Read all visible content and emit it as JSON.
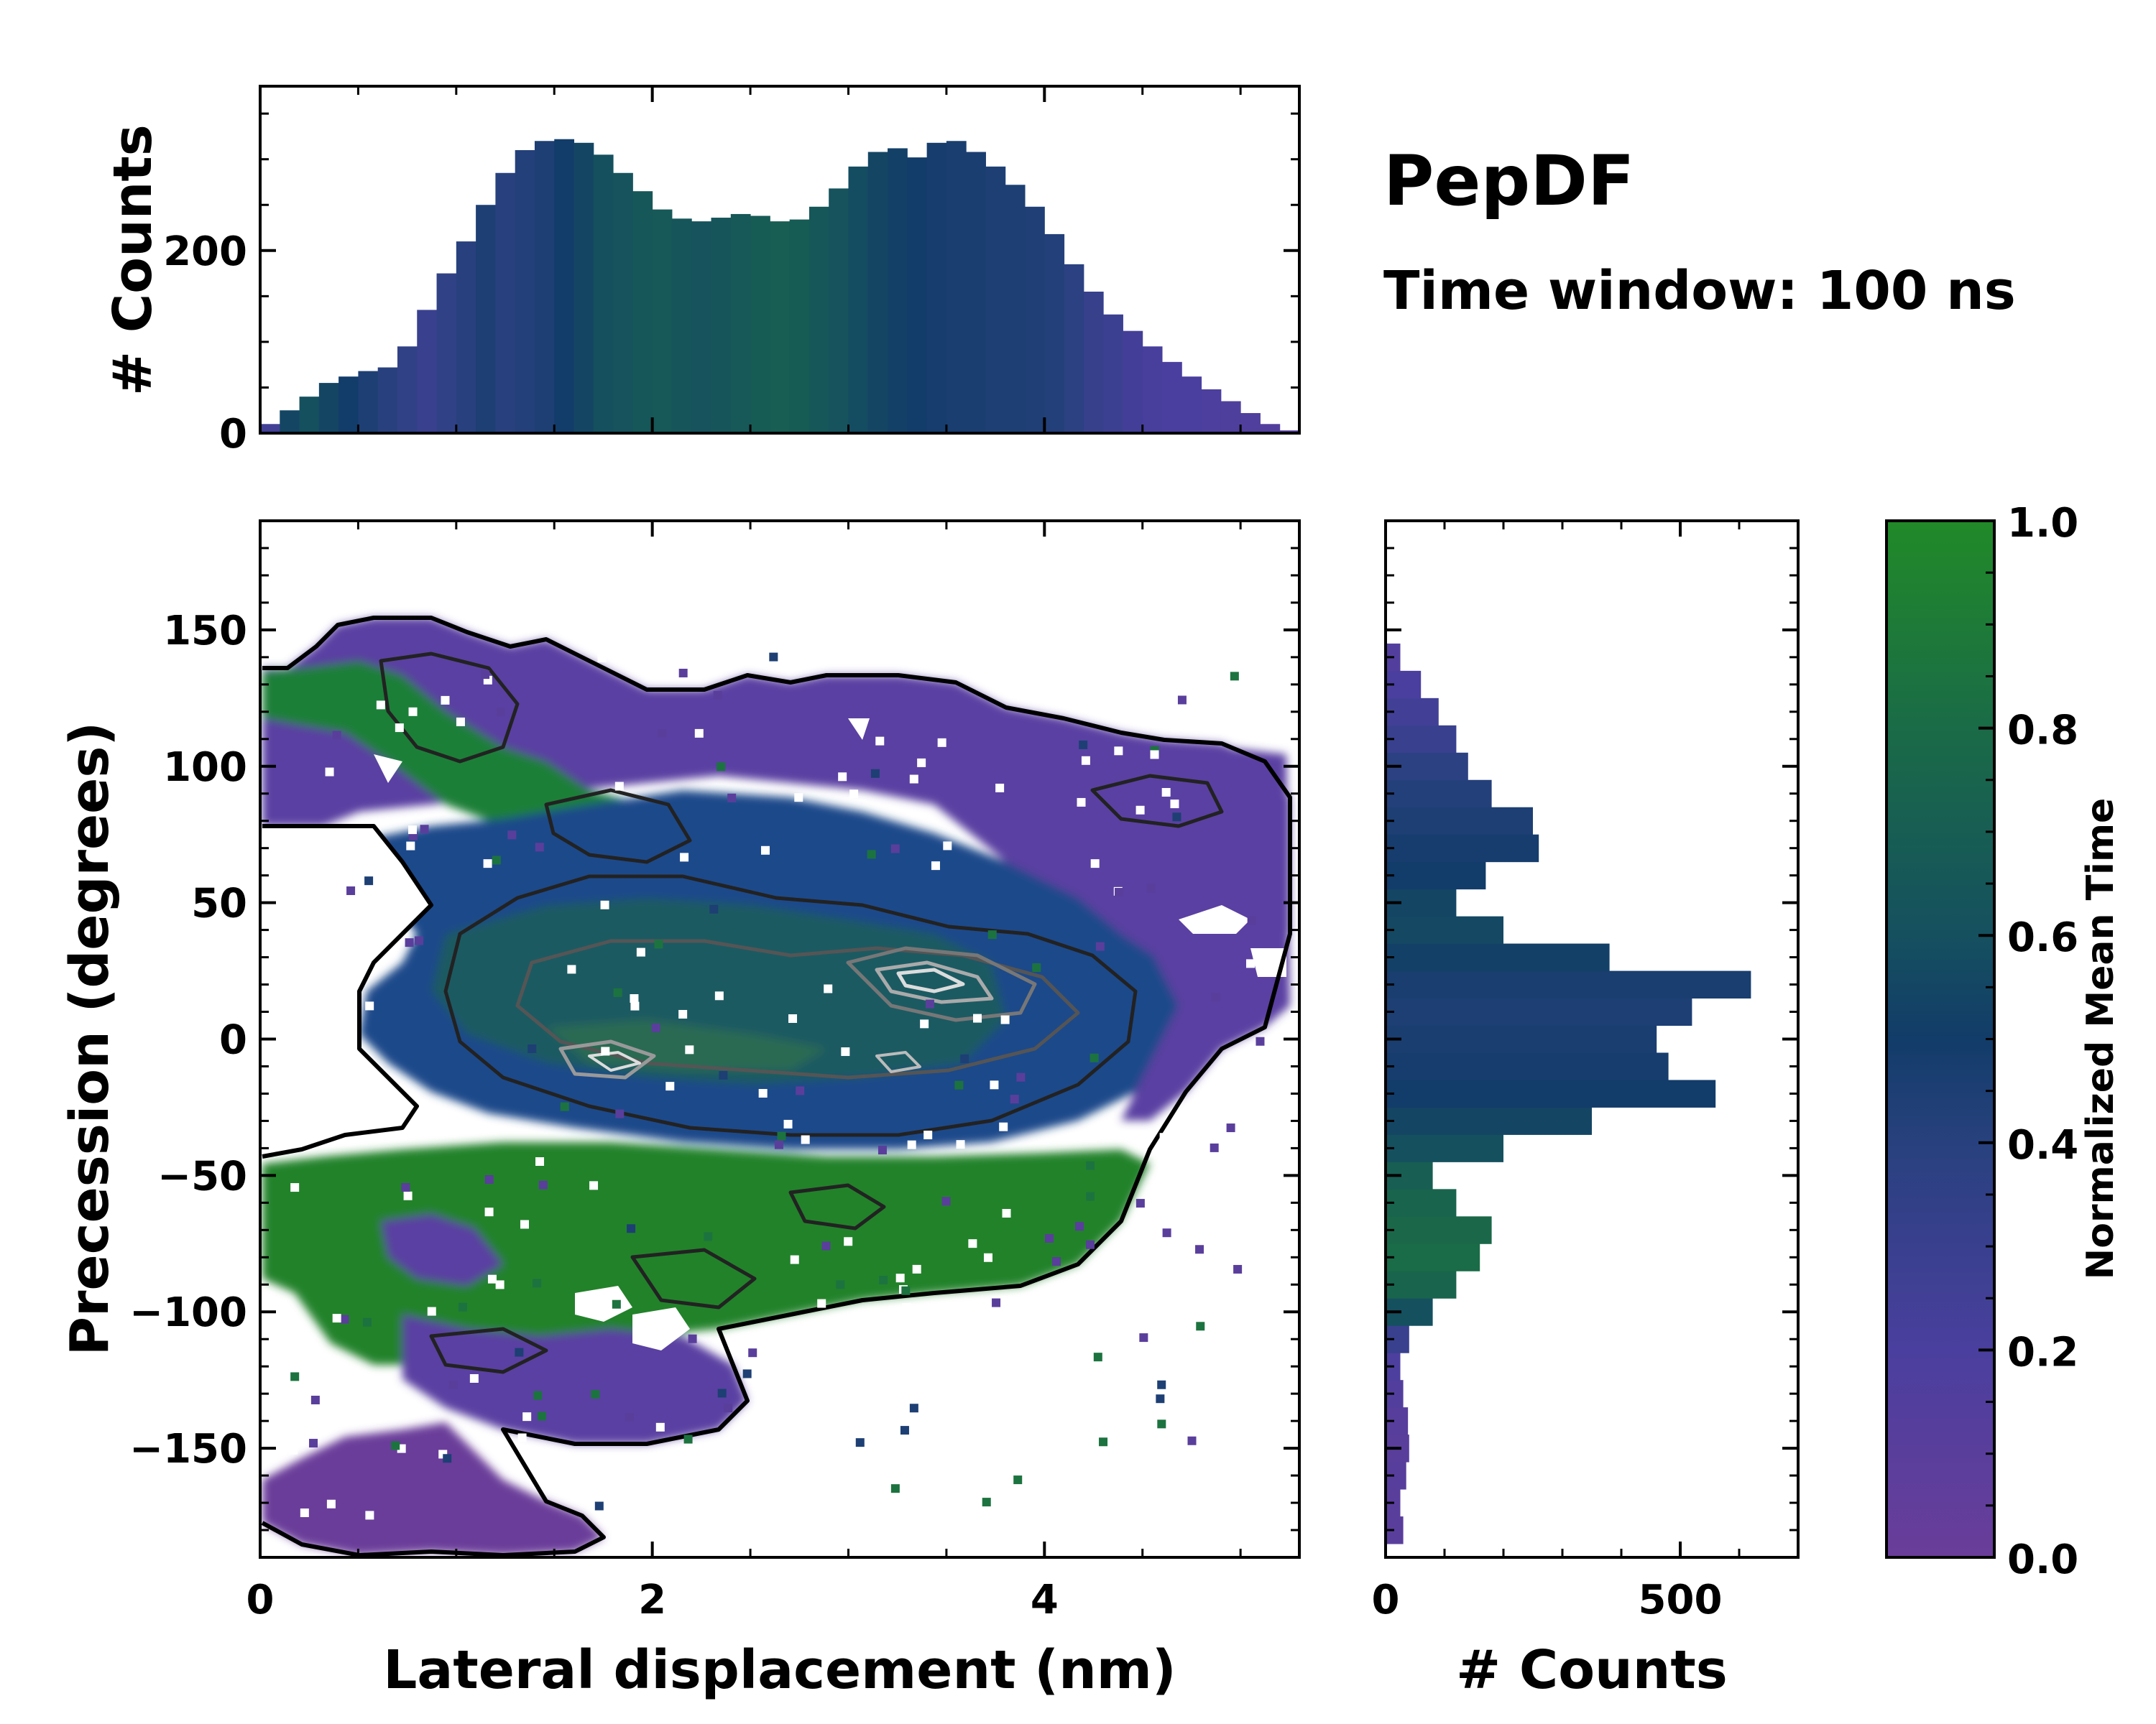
{
  "title": "PepDF",
  "subtitle": "Time window: 100 ns",
  "colors": {
    "c0": "#6a3d9a",
    "c02": "#4a3f9e",
    "c04": "#28417e",
    "c05": "#123c69",
    "c06": "#15505f",
    "c08": "#1a6b47",
    "c1": "#218a28"
  },
  "chart_data": [
    {
      "id": "joint",
      "type": "heatmap",
      "xlabel": "Lateral displacement (nm)",
      "ylabel": "Precession (degrees)",
      "xlim": [
        0,
        5.3
      ],
      "ylim": [
        -190,
        190
      ],
      "xticks": [
        0,
        2,
        4
      ],
      "xtick_labels": [
        "0",
        "2",
        "4"
      ],
      "yticks": [
        -150,
        -100,
        -50,
        0,
        50,
        100,
        150
      ],
      "ytick_labels": [
        "−150",
        "−100",
        "−50",
        "0",
        "50",
        "100",
        "150"
      ],
      "regions": [
        {
          "name": "upper-left green band",
          "x_center": 0.6,
          "y_center": 115,
          "mean_time": 0.9
        },
        {
          "name": "upper purple band",
          "x_center": 3.2,
          "y_center": 110,
          "mean_time": 0.1
        },
        {
          "name": "central blue core",
          "x_center": 2.8,
          "y_center": 10,
          "mean_time": 0.45
        },
        {
          "name": "right purple band",
          "x_center": 4.8,
          "y_center": 60,
          "mean_time": 0.1
        },
        {
          "name": "lower green band",
          "x_center": 2.5,
          "y_center": -75,
          "mean_time": 0.9
        },
        {
          "name": "bottom-left purple patch",
          "x_center": 0.7,
          "y_center": -165,
          "mean_time": 0.05
        }
      ],
      "density_peaks": [
        {
          "x": 3.5,
          "y": 20
        },
        {
          "x": 1.8,
          "y": -18
        },
        {
          "x": 3.3,
          "y": -10
        },
        {
          "x": 2.2,
          "y": 10
        }
      ]
    },
    {
      "id": "top-histogram",
      "type": "bar",
      "ylabel": "# Counts",
      "xlim": [
        0,
        5.3
      ],
      "ylim": [
        0,
        380
      ],
      "yticks": [
        0,
        200
      ],
      "ytick_labels": [
        "0",
        "200"
      ],
      "x": [
        0.05,
        0.15,
        0.25,
        0.35,
        0.45,
        0.55,
        0.65,
        0.75,
        0.85,
        0.95,
        1.05,
        1.15,
        1.25,
        1.35,
        1.45,
        1.55,
        1.65,
        1.75,
        1.85,
        1.95,
        2.05,
        2.15,
        2.25,
        2.35,
        2.45,
        2.55,
        2.65,
        2.75,
        2.85,
        2.95,
        3.05,
        3.15,
        3.25,
        3.35,
        3.45,
        3.55,
        3.65,
        3.75,
        3.85,
        3.95,
        4.05,
        4.15,
        4.25,
        4.35,
        4.45,
        4.55,
        4.65,
        4.75,
        4.85,
        4.95,
        5.05,
        5.15,
        5.25
      ],
      "values": [
        10,
        25,
        40,
        55,
        62,
        68,
        72,
        95,
        135,
        175,
        210,
        250,
        285,
        310,
        320,
        322,
        318,
        305,
        285,
        265,
        245,
        235,
        232,
        236,
        240,
        238,
        232,
        234,
        248,
        268,
        292,
        308,
        312,
        302,
        318,
        320,
        308,
        292,
        272,
        248,
        218,
        185,
        155,
        130,
        112,
        95,
        78,
        62,
        48,
        35,
        22,
        10,
        3
      ],
      "mean_time": [
        0.25,
        0.55,
        0.6,
        0.55,
        0.5,
        0.45,
        0.4,
        0.35,
        0.3,
        0.35,
        0.4,
        0.45,
        0.4,
        0.42,
        0.45,
        0.5,
        0.55,
        0.6,
        0.62,
        0.65,
        0.66,
        0.64,
        0.62,
        0.64,
        0.66,
        0.68,
        0.7,
        0.68,
        0.65,
        0.62,
        0.58,
        0.55,
        0.52,
        0.5,
        0.48,
        0.47,
        0.46,
        0.45,
        0.45,
        0.44,
        0.42,
        0.38,
        0.32,
        0.28,
        0.24,
        0.22,
        0.2,
        0.2,
        0.18,
        0.17,
        0.16,
        0.15,
        0.15
      ]
    },
    {
      "id": "right-histogram",
      "type": "bar",
      "orientation": "horizontal",
      "xlabel": "# Counts",
      "xlim": [
        0,
        700
      ],
      "xticks": [
        0,
        500
      ],
      "xtick_labels": [
        "0",
        "500"
      ],
      "ylim": [
        -190,
        190
      ],
      "y": [
        -180,
        -170,
        -160,
        -150,
        -140,
        -130,
        -120,
        -110,
        -100,
        -90,
        -80,
        -70,
        -60,
        -50,
        -40,
        -30,
        -20,
        -10,
        0,
        10,
        20,
        30,
        40,
        50,
        60,
        70,
        80,
        90,
        100,
        110,
        120,
        130,
        140
      ],
      "values": [
        30,
        25,
        35,
        40,
        38,
        30,
        25,
        40,
        80,
        120,
        160,
        180,
        120,
        80,
        200,
        350,
        560,
        480,
        460,
        520,
        620,
        380,
        200,
        120,
        170,
        260,
        250,
        180,
        140,
        120,
        90,
        60,
        25
      ],
      "mean_time": [
        0.1,
        0.1,
        0.12,
        0.1,
        0.12,
        0.15,
        0.18,
        0.3,
        0.6,
        0.75,
        0.8,
        0.78,
        0.75,
        0.7,
        0.6,
        0.55,
        0.5,
        0.48,
        0.46,
        0.45,
        0.47,
        0.52,
        0.56,
        0.55,
        0.5,
        0.48,
        0.45,
        0.42,
        0.38,
        0.3,
        0.25,
        0.2,
        0.15
      ]
    },
    {
      "id": "colorbar",
      "type": "colorbar",
      "label": "Normalized Mean Time",
      "range": [
        0,
        1
      ],
      "ticks": [
        0,
        0.2,
        0.4,
        0.6,
        0.8,
        1
      ],
      "tick_labels": [
        "0.0",
        "0.2",
        "0.4",
        "0.6",
        "0.8",
        "1.0"
      ]
    }
  ]
}
